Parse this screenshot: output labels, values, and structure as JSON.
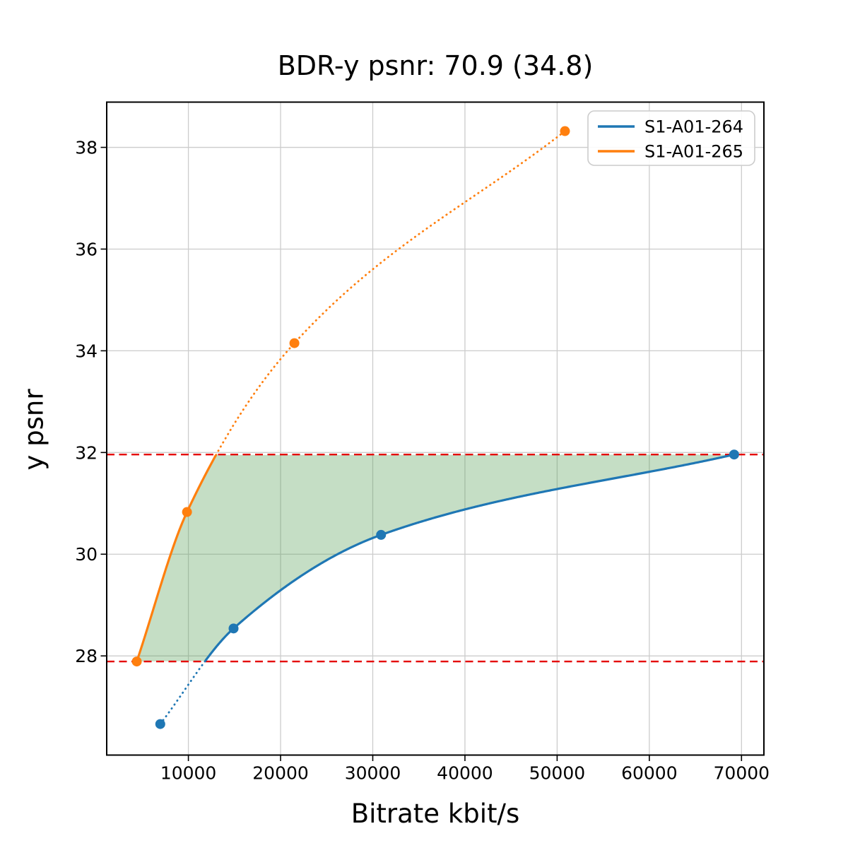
{
  "chart_data": {
    "type": "line",
    "title": "BDR-y psnr: 70.9 (34.8)",
    "xlabel": "Bitrate kbit/s",
    "ylabel": "y psnr",
    "xlim": [
      1140,
      72430
    ],
    "ylim": [
      26.05,
      38.89
    ],
    "xticks": {
      "values": [
        10000,
        20000,
        30000,
        40000,
        50000,
        60000,
        70000
      ],
      "labels": [
        "10000",
        "20000",
        "30000",
        "40000",
        "50000",
        "60000",
        "70000"
      ]
    },
    "yticks": {
      "values": [
        28,
        30,
        32,
        34,
        36,
        38
      ],
      "labels": [
        "28",
        "30",
        "32",
        "34",
        "36",
        "38"
      ]
    },
    "grid": true,
    "grid_color": "#cccccc",
    "legend": {
      "position": "upper right",
      "entries": [
        "S1-A01-264",
        "S1-A01-265"
      ]
    },
    "series": [
      {
        "name": "S1-A01-264",
        "color": "#1f77b4",
        "x": [
          6950,
          14900,
          30900,
          69200
        ],
        "y": [
          26.66,
          28.54,
          30.38,
          31.96
        ]
      },
      {
        "name": "S1-A01-265",
        "color": "#ff7f0e",
        "x": [
          4400,
          9850,
          21500,
          50850
        ],
        "y": [
          27.89,
          30.83,
          34.15,
          38.32
        ]
      }
    ],
    "overlap_interval": {
      "y_low": 27.89,
      "y_high": 31.96,
      "line_color": "#e50000",
      "line_style": "dashed"
    },
    "shaded_region": {
      "fill_color": "rgba(90,160,90,0.35)"
    }
  }
}
